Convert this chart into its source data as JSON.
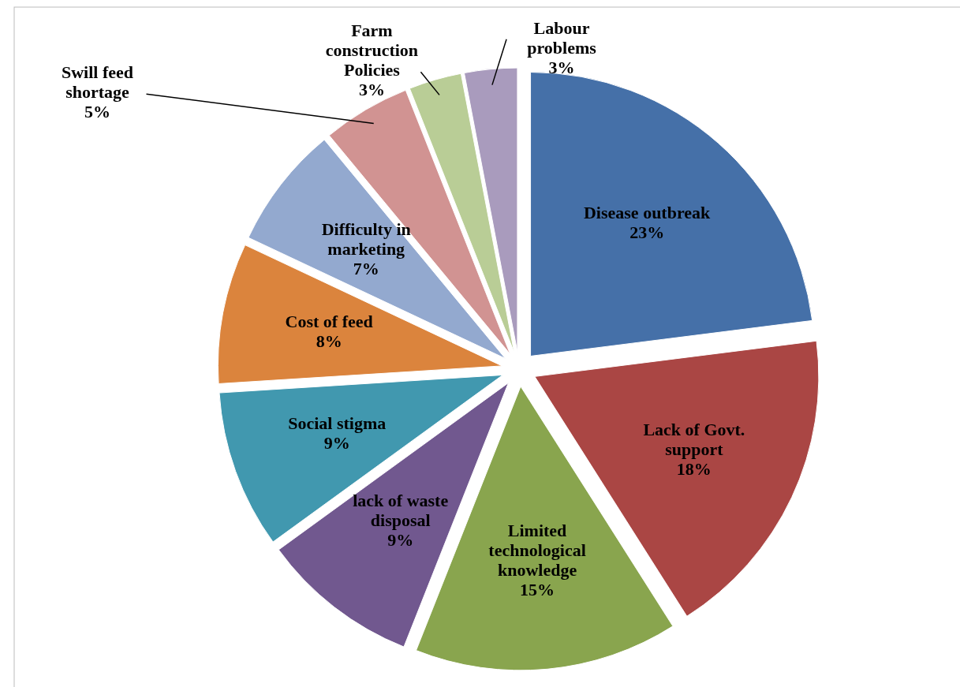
{
  "chart_data": {
    "type": "pie",
    "categories": [
      "Disease outbreak",
      "Lack of Govt. support",
      "Limited technological knowledge",
      "lack of waste disposal",
      "Social stigma",
      "Cost of feed",
      "Difficulty in marketing",
      "Swill feed shortage",
      "Farm construction Policies",
      "Labour problems"
    ],
    "values": [
      23,
      18,
      15,
      9,
      9,
      8,
      7,
      5,
      3,
      3
    ],
    "value_labels": [
      "23%",
      "18%",
      "15%",
      "9%",
      "9%",
      "8%",
      "7%",
      "5%",
      "3%",
      "3%"
    ],
    "colors": [
      "#4570a8",
      "#aa4644",
      "#89a54e",
      "#71588f",
      "#4198af",
      "#db843d",
      "#93a9cf",
      "#d19392",
      "#b9cd96",
      "#a99bbd"
    ]
  }
}
